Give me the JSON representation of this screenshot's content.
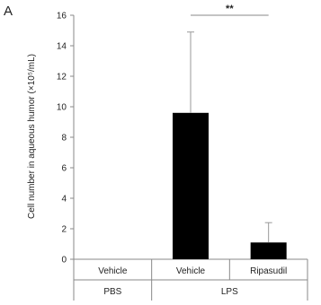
{
  "panel_label": "A",
  "chart_data": {
    "type": "bar",
    "ylabel": "Cell number in aqueous humor (×10⁵/mL)",
    "ylim": [
      0,
      16
    ],
    "yticks": [
      0,
      2,
      4,
      6,
      8,
      10,
      12,
      14,
      16
    ],
    "grid": false,
    "categories": [
      "Vehicle",
      "Vehicle",
      "Ripasudil"
    ],
    "groups": [
      {
        "label": "PBS",
        "span": [
          0,
          0
        ]
      },
      {
        "label": "LPS",
        "span": [
          1,
          2
        ]
      }
    ],
    "values": [
      0,
      9.6,
      1.1
    ],
    "error_upper": [
      0,
      14.9,
      2.4
    ],
    "bar_color": "#000000",
    "significance": [
      {
        "between": [
          1,
          2
        ],
        "label": "**"
      }
    ]
  }
}
